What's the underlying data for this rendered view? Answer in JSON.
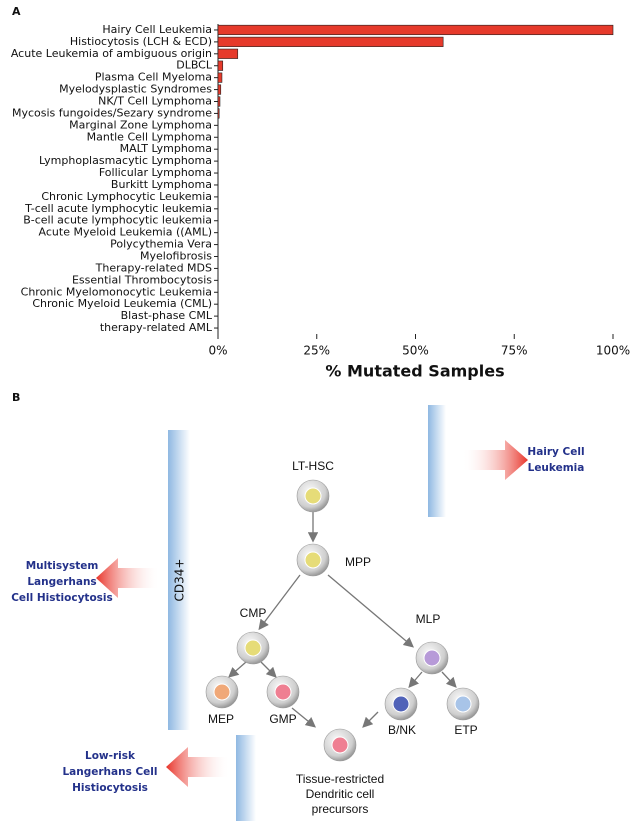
{
  "panel_labels": [
    "A",
    "B"
  ],
  "chart_data": {
    "type": "barh",
    "xlabel": "% Mutated Samples",
    "categories": [
      "Hairy Cell Leukemia",
      "Histiocytosis (LCH & ECD)",
      "Acute Leukemia of ambiguous origin",
      "DLBCL",
      "Plasma Cell Myeloma",
      "Myelodysplastic Syndromes",
      "NK/T Cell Lymphoma",
      "Mycosis fungoides/Sezary syndrome",
      "Marginal Zone Lymphoma",
      "Mantle Cell Lymphoma",
      "MALT Lymphoma",
      "Lymphoplasmacytic Lymphoma",
      "Follicular Lymphoma",
      "Burkitt Lymphoma",
      "Chronic Lymphocytic Leukemia",
      "T-cell acute lymphocytic leukemia",
      "B-cell acute lymphocytic leukemia",
      "Acute Myeloid Leukemia ((AML)",
      "Polycythemia Vera",
      "Myelofibrosis",
      "Therapy-related MDS",
      "Essential Thrombocytosis",
      "Chronic Myelomonocytic Leukemia",
      "Chronic Myeloid Leukemia (CML)",
      "Blast-phase CML",
      "therapy-related AML"
    ],
    "values": [
      100,
      57,
      5,
      1.2,
      1,
      0.7,
      0.5,
      0.3,
      0,
      0,
      0,
      0,
      0,
      0,
      0,
      0,
      0,
      0,
      0,
      0,
      0,
      0,
      0,
      0,
      0,
      0
    ],
    "color": "#e63a2b",
    "xlim": [
      0,
      100
    ],
    "xticks": [
      {
        "value": 0,
        "label": "0%"
      },
      {
        "value": 25,
        "label": "25%"
      },
      {
        "value": 50,
        "label": "50%"
      },
      {
        "value": 75,
        "label": "75%"
      },
      {
        "value": 100,
        "label": "100%"
      }
    ]
  },
  "diagram": {
    "gradient_label": "CD34+",
    "nodes": [
      {
        "lines": [
          "LT-HSC"
        ]
      },
      {
        "lines": [
          "MPP"
        ]
      },
      {
        "lines": [
          "CMP"
        ]
      },
      {
        "lines": [
          "MLP"
        ]
      },
      {
        "lines": [
          "MEP"
        ]
      },
      {
        "lines": [
          "GMP"
        ]
      },
      {
        "lines": [
          "B/NK"
        ]
      },
      {
        "lines": [
          "ETP"
        ]
      },
      {
        "lines": [
          "Tissue-restricted",
          "Dendritic cell",
          "precursors"
        ]
      }
    ],
    "outcomes": [
      {
        "lines": [
          "Hairy Cell",
          "Leukemia"
        ]
      },
      {
        "lines": [
          "Multisystem",
          "Langerhans",
          "Cell Histiocytosis"
        ]
      },
      {
        "lines": [
          "Low-risk",
          "Langerhans Cell",
          "Histiocytosis"
        ]
      }
    ]
  }
}
